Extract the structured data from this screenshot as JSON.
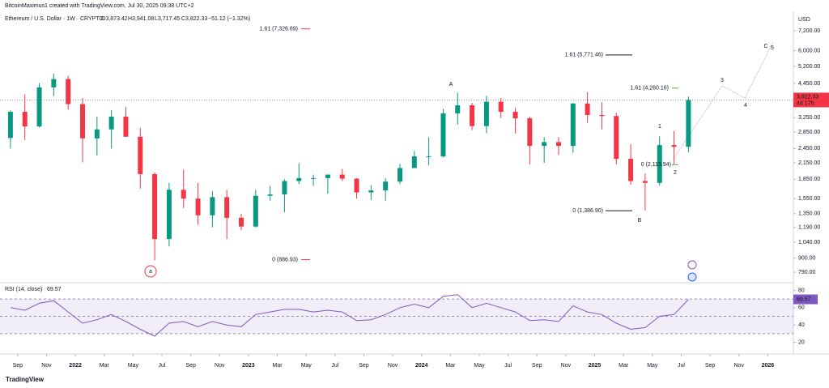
{
  "header": {
    "text": "BitcoinMaximus1 created with TradingView.com, Jul 30, 2025 09:38 UTC+2"
  },
  "footer": {
    "brand": "TradingView"
  },
  "chart_data": [
    {
      "type": "candlestick",
      "title": "Ethereum / U.S. Dollar · 1W · CRYPTO",
      "ohlc_labels": [
        "O3,873.42",
        "H3,941.08",
        "L3,717.45",
        "C3,822.33"
      ],
      "change": "−51.12 (−1.32%)",
      "unit": "USD",
      "log_scale": true,
      "up_color": "#089981",
      "down_color": "#f23645",
      "x": [
        "2021-08",
        "2021-09",
        "2021-10",
        "2021-11",
        "2021-12",
        "2022-01",
        "2022-02",
        "2022-03",
        "2022-04",
        "2022-05",
        "2022-06",
        "2022-07",
        "2022-08",
        "2022-09",
        "2022-10",
        "2022-11",
        "2022-12",
        "2023-01",
        "2023-02",
        "2023-03",
        "2023-04",
        "2023-05",
        "2023-06",
        "2023-07",
        "2023-08",
        "2023-09",
        "2023-10",
        "2023-11",
        "2023-12",
        "2024-01",
        "2024-02",
        "2024-03",
        "2024-04",
        "2024-05",
        "2024-06",
        "2024-07",
        "2024-08",
        "2024-09",
        "2024-10",
        "2024-11",
        "2024-12",
        "2025-01",
        "2025-02",
        "2025-03",
        "2025-04",
        "2025-05",
        "2025-06",
        "2025-07"
      ],
      "open": [
        2700,
        3430,
        3000,
        4290,
        4630,
        3680,
        2690,
        2920,
        3280,
        2730,
        1940,
        1070,
        1680,
        1550,
        1330,
        1570,
        1300,
        1200,
        1590,
        1610,
        1820,
        1870,
        1870,
        1930,
        1860,
        1640,
        1670,
        1810,
        2050,
        2280,
        2280,
        3380,
        3640,
        3010,
        3760,
        3430,
        3230,
        2510,
        2600,
        2510,
        3700,
        3330,
        3300,
        2230,
        1820,
        1790,
        2530,
        2490
      ],
      "high": [
        3470,
        4030,
        4460,
        4870,
        4780,
        3900,
        3280,
        3480,
        3580,
        2960,
        1970,
        1790,
        2020,
        1790,
        1660,
        1680,
        1350,
        1680,
        1740,
        1850,
        2140,
        1930,
        1930,
        2030,
        1870,
        1750,
        1870,
        2130,
        2400,
        2720,
        3520,
        4090,
        3720,
        3970,
        3890,
        3560,
        3280,
        2720,
        2720,
        3720,
        4110,
        3740,
        3400,
        2550,
        1950,
        2740,
        2880,
        3941.08
      ],
      "low": [
        2450,
        2650,
        2970,
        3960,
        3500,
        2160,
        2300,
        2450,
        2780,
        1700,
        880,
        1000,
        1420,
        1220,
        1190,
        1070,
        1160,
        1190,
        1520,
        1370,
        1770,
        1740,
        1620,
        1820,
        1550,
        1530,
        1520,
        1770,
        2050,
        2100,
        2260,
        3050,
        2900,
        2820,
        3240,
        2810,
        2120,
        2150,
        2310,
        2360,
        3100,
        2920,
        2120,
        1760,
        1390,
        1750,
        2110,
        2370
      ],
      "close": [
        3430,
        3000,
        4290,
        4630,
        3680,
        2690,
        2920,
        3280,
        2730,
        1940,
        1070,
        1680,
        1550,
        1330,
        1570,
        1300,
        1200,
        1590,
        1610,
        1820,
        1870,
        1870,
        1930,
        1860,
        1640,
        1670,
        1810,
        2050,
        2280,
        2280,
        3380,
        3640,
        3010,
        3760,
        3430,
        3230,
        2510,
        2600,
        2510,
        3700,
        3330,
        3300,
        2230,
        1820,
        1790,
        2530,
        2490,
        3822.33
      ],
      "xlim": [
        "2021-08",
        "2026-03"
      ],
      "xticks": [
        {
          "value": "2021-09",
          "label": "Sep"
        },
        {
          "value": "2021-11",
          "label": "Nov"
        },
        {
          "value": "2022-01",
          "label": "2022"
        },
        {
          "value": "2022-03",
          "label": "Mar"
        },
        {
          "value": "2022-05",
          "label": "May"
        },
        {
          "value": "2022-07",
          "label": "Jul"
        },
        {
          "value": "2022-09",
          "label": "Sep"
        },
        {
          "value": "2022-11",
          "label": "Nov"
        },
        {
          "value": "2023-01",
          "label": "2023"
        },
        {
          "value": "2023-03",
          "label": "Mar"
        },
        {
          "value": "2023-05",
          "label": "May"
        },
        {
          "value": "2023-07",
          "label": "Jul"
        },
        {
          "value": "2023-09",
          "label": "Sep"
        },
        {
          "value": "2023-11",
          "label": "Nov"
        },
        {
          "value": "2024-01",
          "label": "2024"
        },
        {
          "value": "2024-03",
          "label": "Mar"
        },
        {
          "value": "2024-05",
          "label": "May"
        },
        {
          "value": "2024-07",
          "label": "Jul"
        },
        {
          "value": "2024-09",
          "label": "Sep"
        },
        {
          "value": "2024-11",
          "label": "Nov"
        },
        {
          "value": "2025-01",
          "label": "2025"
        },
        {
          "value": "2025-03",
          "label": "Mar"
        },
        {
          "value": "2025-05",
          "label": "May"
        },
        {
          "value": "2025-07",
          "label": "Jul"
        },
        {
          "value": "2025-09",
          "label": "Sep"
        },
        {
          "value": "2025-11",
          "label": "Nov"
        },
        {
          "value": "2026-01",
          "label": "2026"
        }
      ],
      "ylim": [
        723,
        8540
      ],
      "yticks": [
        {
          "value": 7200,
          "label": "7,200.00"
        },
        {
          "value": 6000,
          "label": "6,000.00"
        },
        {
          "value": 5200,
          "label": "5,200.00"
        },
        {
          "value": 4450,
          "label": "4,450.00"
        },
        {
          "value": 3250,
          "label": "3,250.00"
        },
        {
          "value": 2850,
          "label": "2,850.00"
        },
        {
          "value": 2450,
          "label": "2,450.00"
        },
        {
          "value": 2150,
          "label": "2,150.00"
        },
        {
          "value": 1850,
          "label": "1,850.00"
        },
        {
          "value": 1550,
          "label": "1,550.00"
        },
        {
          "value": 1350,
          "label": "1,350.00"
        },
        {
          "value": 1190,
          "label": "1,190.00"
        },
        {
          "value": 1040,
          "label": "1,040.00"
        },
        {
          "value": 900,
          "label": "900.00"
        },
        {
          "value": 790,
          "label": "790.00"
        }
      ],
      "last_price": {
        "value": 3822.33,
        "label": "3,822.33"
      },
      "countdown": "4d 17h",
      "annotations": [
        {
          "text": "1.61 (7,326.69)",
          "value": 7326.69,
          "color": "#f23645"
        },
        {
          "text": "0 (886.93)",
          "value": 886.93,
          "color": "#f23645"
        },
        {
          "text": "1.61 (5,771.46)",
          "value": 5771.46,
          "color": "#131722"
        },
        {
          "text": "0 (1,386.90)",
          "value": 1386.9,
          "color": "#131722"
        },
        {
          "text": "1.61 (4,260.16)",
          "value": 4260.16,
          "color": "#4caf50"
        },
        {
          "text": "0 (2,113.94)",
          "value": 2113.94,
          "color": "#4caf50"
        }
      ],
      "wave_labels": [
        "A",
        "B",
        "C",
        "a",
        "1",
        "2",
        "3",
        "4",
        "5"
      ]
    },
    {
      "type": "line",
      "title": "RSI (14, close)",
      "color": "#7e57c2",
      "x": [
        "2021-08",
        "2021-09",
        "2021-10",
        "2021-11",
        "2021-12",
        "2022-01",
        "2022-02",
        "2022-03",
        "2022-04",
        "2022-05",
        "2022-06",
        "2022-07",
        "2022-08",
        "2022-09",
        "2022-10",
        "2022-11",
        "2022-12",
        "2023-01",
        "2023-02",
        "2023-03",
        "2023-04",
        "2023-05",
        "2023-06",
        "2023-07",
        "2023-08",
        "2023-09",
        "2023-10",
        "2023-11",
        "2023-12",
        "2024-01",
        "2024-02",
        "2024-03",
        "2024-04",
        "2024-05",
        "2024-06",
        "2024-07",
        "2024-08",
        "2024-09",
        "2024-10",
        "2024-11",
        "2024-12",
        "2025-01",
        "2025-02",
        "2025-03",
        "2025-04",
        "2025-05",
        "2025-06",
        "2025-07"
      ],
      "values": [
        60,
        57,
        65,
        68,
        55,
        42,
        46,
        52,
        44,
        35,
        27,
        42,
        44,
        38,
        44,
        40,
        38,
        52,
        55,
        58,
        58,
        55,
        57,
        55,
        45,
        46,
        52,
        60,
        64,
        60,
        73,
        75,
        60,
        65,
        60,
        55,
        45,
        46,
        44,
        62,
        55,
        52,
        42,
        35,
        37,
        50,
        52,
        69.57
      ],
      "ylim": [
        13,
        86
      ],
      "yticks": [
        80,
        60,
        40,
        20
      ],
      "bands": [
        70,
        50,
        30
      ],
      "last": {
        "value": 69.57,
        "label": "69.57"
      }
    }
  ]
}
